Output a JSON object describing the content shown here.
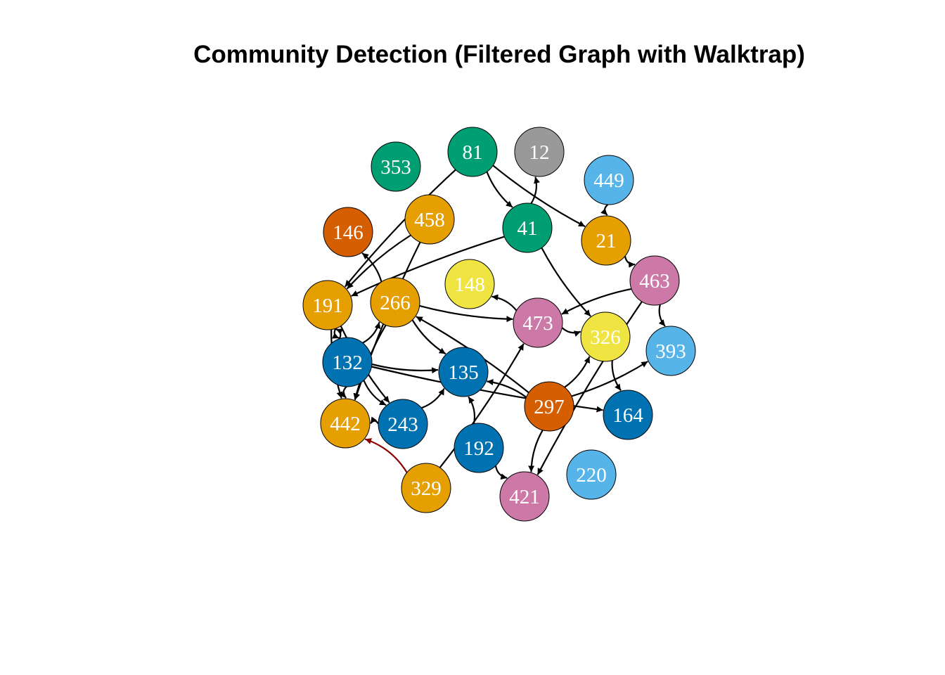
{
  "title": "Community Detection (Filtered Graph with Walktrap)",
  "community_colors": {
    "green": "#009E73",
    "grey": "#999999",
    "sky": "#56B4E9",
    "orange": "#E69F00",
    "vermillion": "#D55E00",
    "yellow": "#F0E442",
    "pink": "#CC79A7",
    "blue": "#0072B2"
  },
  "edge_colors": {
    "default": "#000000",
    "highlight": "#8B0000"
  },
  "nodes": [
    {
      "id": "353",
      "community": "green"
    },
    {
      "id": "81",
      "community": "green"
    },
    {
      "id": "12",
      "community": "grey"
    },
    {
      "id": "449",
      "community": "sky"
    },
    {
      "id": "458",
      "community": "orange"
    },
    {
      "id": "146",
      "community": "vermillion"
    },
    {
      "id": "41",
      "community": "green"
    },
    {
      "id": "21",
      "community": "orange"
    },
    {
      "id": "463",
      "community": "pink"
    },
    {
      "id": "148",
      "community": "yellow"
    },
    {
      "id": "191",
      "community": "orange"
    },
    {
      "id": "266",
      "community": "orange"
    },
    {
      "id": "473",
      "community": "pink"
    },
    {
      "id": "326",
      "community": "yellow"
    },
    {
      "id": "393",
      "community": "sky"
    },
    {
      "id": "132",
      "community": "blue"
    },
    {
      "id": "135",
      "community": "blue"
    },
    {
      "id": "297",
      "community": "vermillion"
    },
    {
      "id": "164",
      "community": "blue"
    },
    {
      "id": "442",
      "community": "orange"
    },
    {
      "id": "243",
      "community": "blue"
    },
    {
      "id": "192",
      "community": "blue"
    },
    {
      "id": "220",
      "community": "sky"
    },
    {
      "id": "329",
      "community": "orange"
    },
    {
      "id": "421",
      "community": "pink"
    }
  ],
  "edges": [
    {
      "from": "81",
      "to": "41"
    },
    {
      "from": "81",
      "to": "21"
    },
    {
      "from": "81",
      "to": "191"
    },
    {
      "from": "41",
      "to": "12"
    },
    {
      "from": "41",
      "to": "326"
    },
    {
      "from": "41",
      "to": "191"
    },
    {
      "from": "449",
      "to": "21"
    },
    {
      "from": "21",
      "to": "463"
    },
    {
      "from": "458",
      "to": "191"
    },
    {
      "from": "458",
      "to": "442"
    },
    {
      "from": "266",
      "to": "146"
    },
    {
      "from": "266",
      "to": "473"
    },
    {
      "from": "266",
      "to": "135"
    },
    {
      "from": "266",
      "to": "442"
    },
    {
      "from": "191",
      "to": "132"
    },
    {
      "from": "191",
      "to": "442"
    },
    {
      "from": "191",
      "to": "243"
    },
    {
      "from": "132",
      "to": "191"
    },
    {
      "from": "132",
      "to": "266"
    },
    {
      "from": "132",
      "to": "135"
    },
    {
      "from": "132",
      "to": "442"
    },
    {
      "from": "132",
      "to": "243"
    },
    {
      "from": "132",
      "to": "164"
    },
    {
      "from": "243",
      "to": "442"
    },
    {
      "from": "243",
      "to": "135"
    },
    {
      "from": "463",
      "to": "473"
    },
    {
      "from": "463",
      "to": "393"
    },
    {
      "from": "463",
      "to": "421"
    },
    {
      "from": "473",
      "to": "148"
    },
    {
      "from": "473",
      "to": "326"
    },
    {
      "from": "326",
      "to": "164"
    },
    {
      "from": "297",
      "to": "135"
    },
    {
      "from": "297",
      "to": "326"
    },
    {
      "from": "297",
      "to": "393"
    },
    {
      "from": "297",
      "to": "421"
    },
    {
      "from": "297",
      "to": "266"
    },
    {
      "from": "192",
      "to": "135"
    },
    {
      "from": "192",
      "to": "421"
    },
    {
      "from": "329",
      "to": "473"
    },
    {
      "from": "329",
      "to": "442",
      "highlight": true
    }
  ]
}
